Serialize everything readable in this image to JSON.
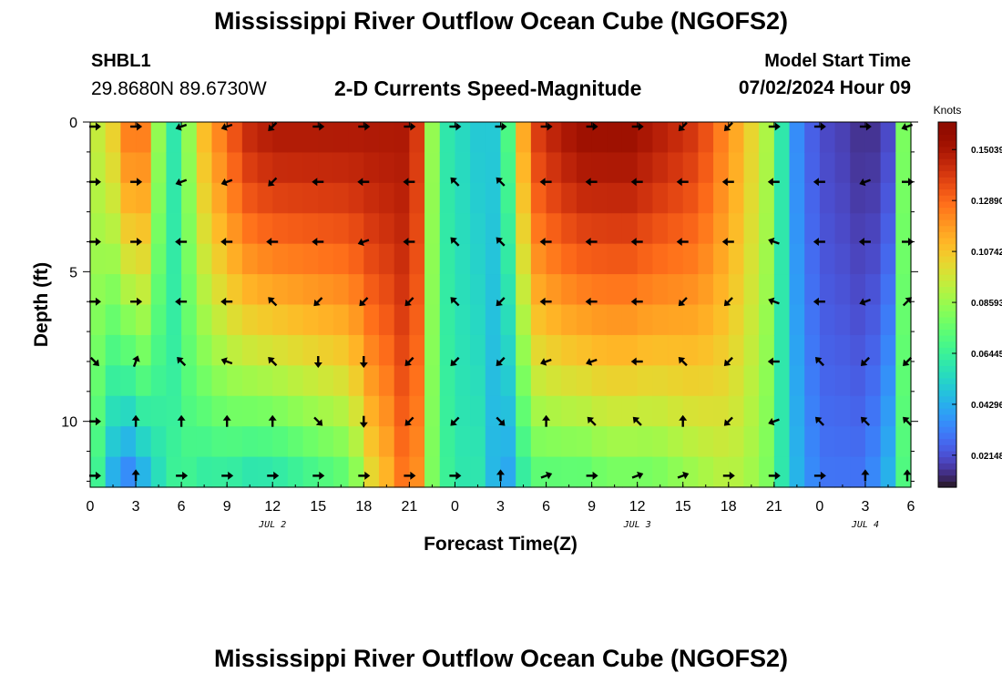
{
  "header": {
    "title": "Mississippi River Outflow Ocean Cube (NGOFS2)",
    "station_id": "SHBL1",
    "station_coords": "29.8680N  89.6730W",
    "product_title": "2-D Currents Speed-Magnitude",
    "model_start_label": "Model Start Time",
    "model_start_value": "07/02/2024 Hour 09"
  },
  "footer": {
    "title": "Mississippi River Outflow Ocean Cube (NGOFS2)"
  },
  "chart_data": {
    "type": "heatmap",
    "xlabel": "Forecast Time(Z)",
    "ylabel": "Depth (ft)",
    "x_ticks": [
      "0",
      "3",
      "6",
      "9",
      "12",
      "15",
      "18",
      "21",
      "0",
      "3",
      "6",
      "9",
      "12",
      "15",
      "18",
      "21",
      "0",
      "3",
      "6"
    ],
    "day_labels": [
      {
        "label": "JUL 2",
        "at_hour": 12
      },
      {
        "label": "JUL 3",
        "at_hour": 36
      },
      {
        "label": "JUL 4",
        "at_hour": 51
      }
    ],
    "x_range_hours": [
      0,
      54
    ],
    "y_ticks": [
      "0",
      "5",
      "10"
    ],
    "y_range": [
      0,
      12.2
    ],
    "y_inverted": true,
    "colorbar": {
      "label": "Knots",
      "ticks": [
        "0.02148",
        "0.04296",
        "0.06445",
        "0.08593",
        "0.10742",
        "0.12890",
        "0.15039"
      ],
      "range": [
        0.008,
        0.162
      ]
    },
    "colormap": "turbo",
    "speed_profile": [
      {
        "hour": 0.0,
        "surface": 0.095,
        "bottom": 0.075
      },
      {
        "hour": 0.7,
        "surface": 0.095,
        "bottom": 0.06
      },
      {
        "hour": 1.5,
        "surface": 0.105,
        "bottom": 0.04
      },
      {
        "hour": 2.5,
        "surface": 0.125,
        "bottom": 0.03
      },
      {
        "hour": 3.5,
        "surface": 0.125,
        "bottom": 0.04
      },
      {
        "hour": 4.5,
        "surface": 0.085,
        "bottom": 0.055
      },
      {
        "hour": 5.5,
        "surface": 0.06,
        "bottom": 0.065
      },
      {
        "hour": 6.5,
        "surface": 0.085,
        "bottom": 0.065
      },
      {
        "hour": 7.5,
        "surface": 0.11,
        "bottom": 0.06
      },
      {
        "hour": 9.0,
        "surface": 0.13,
        "bottom": 0.06
      },
      {
        "hour": 10.5,
        "surface": 0.145,
        "bottom": 0.055
      },
      {
        "hour": 12.0,
        "surface": 0.15,
        "bottom": 0.055
      },
      {
        "hour": 13.5,
        "surface": 0.15,
        "bottom": 0.06
      },
      {
        "hour": 15.0,
        "surface": 0.15,
        "bottom": 0.065
      },
      {
        "hour": 16.5,
        "surface": 0.15,
        "bottom": 0.07
      },
      {
        "hour": 17.5,
        "surface": 0.15,
        "bottom": 0.08
      },
      {
        "hour": 18.5,
        "surface": 0.15,
        "bottom": 0.1
      },
      {
        "hour": 19.5,
        "surface": 0.15,
        "bottom": 0.11
      },
      {
        "hour": 20.5,
        "surface": 0.15,
        "bottom": 0.125
      },
      {
        "hour": 21.5,
        "surface": 0.14,
        "bottom": 0.12
      },
      {
        "hour": 22.5,
        "surface": 0.085,
        "bottom": 0.08
      },
      {
        "hour": 23.5,
        "surface": 0.06,
        "bottom": 0.065
      },
      {
        "hour": 24.5,
        "surface": 0.055,
        "bottom": 0.06
      },
      {
        "hour": 25.5,
        "surface": 0.05,
        "bottom": 0.06
      },
      {
        "hour": 26.5,
        "surface": 0.05,
        "bottom": 0.045
      },
      {
        "hour": 27.5,
        "surface": 0.07,
        "bottom": 0.04
      },
      {
        "hour": 28.5,
        "surface": 0.115,
        "bottom": 0.06
      },
      {
        "hour": 29.5,
        "surface": 0.14,
        "bottom": 0.07
      },
      {
        "hour": 31.0,
        "surface": 0.15,
        "bottom": 0.07
      },
      {
        "hour": 32.5,
        "surface": 0.155,
        "bottom": 0.07
      },
      {
        "hour": 34.0,
        "surface": 0.155,
        "bottom": 0.075
      },
      {
        "hour": 35.5,
        "surface": 0.155,
        "bottom": 0.075
      },
      {
        "hour": 37.0,
        "surface": 0.15,
        "bottom": 0.075
      },
      {
        "hour": 38.5,
        "surface": 0.145,
        "bottom": 0.08
      },
      {
        "hour": 40.0,
        "surface": 0.14,
        "bottom": 0.085
      },
      {
        "hour": 41.5,
        "surface": 0.125,
        "bottom": 0.09
      },
      {
        "hour": 43.0,
        "surface": 0.11,
        "bottom": 0.09
      },
      {
        "hour": 44.5,
        "surface": 0.09,
        "bottom": 0.08
      },
      {
        "hour": 45.5,
        "surface": 0.06,
        "bottom": 0.06
      },
      {
        "hour": 46.5,
        "surface": 0.035,
        "bottom": 0.045
      },
      {
        "hour": 47.5,
        "surface": 0.025,
        "bottom": 0.035
      },
      {
        "hour": 48.5,
        "surface": 0.02,
        "bottom": 0.03
      },
      {
        "hour": 49.5,
        "surface": 0.018,
        "bottom": 0.03
      },
      {
        "hour": 50.5,
        "surface": 0.015,
        "bottom": 0.03
      },
      {
        "hour": 51.5,
        "surface": 0.015,
        "bottom": 0.035
      },
      {
        "hour": 52.5,
        "surface": 0.02,
        "bottom": 0.045
      },
      {
        "hour": 53.5,
        "surface": 0.08,
        "bottom": 0.07
      },
      {
        "hour": 54.0,
        "surface": 0.12,
        "bottom": 0.08
      }
    ],
    "vector_depths_ft": [
      0,
      2,
      4,
      6,
      8,
      10,
      12
    ],
    "vector_hours": [
      0,
      3,
      6,
      9,
      12,
      15,
      18,
      21,
      24,
      27,
      30,
      33,
      36,
      39,
      42,
      45,
      48,
      51,
      54
    ],
    "vector_directions_deg": [
      [
        0,
        0,
        200,
        200,
        225,
        0,
        0,
        0,
        0,
        0,
        0,
        0,
        0,
        225,
        225,
        0,
        0,
        0,
        200
      ],
      [
        0,
        0,
        200,
        200,
        225,
        180,
        180,
        180,
        135,
        135,
        180,
        180,
        180,
        180,
        180,
        180,
        180,
        200,
        0
      ],
      [
        0,
        0,
        180,
        180,
        180,
        180,
        200,
        180,
        135,
        135,
        180,
        180,
        180,
        180,
        180,
        160,
        180,
        180,
        0
      ],
      [
        0,
        0,
        180,
        180,
        135,
        225,
        225,
        225,
        135,
        225,
        180,
        180,
        180,
        225,
        225,
        160,
        180,
        200,
        45
      ],
      [
        315,
        70,
        135,
        160,
        135,
        270,
        270,
        225,
        225,
        225,
        200,
        200,
        180,
        135,
        225,
        180,
        135,
        225,
        225
      ],
      [
        0,
        90,
        90,
        90,
        90,
        315,
        270,
        225,
        225,
        315,
        90,
        135,
        135,
        90,
        225,
        200,
        135,
        135,
        135
      ],
      [
        0,
        90,
        0,
        0,
        0,
        0,
        0,
        0,
        0,
        90,
        20,
        0,
        20,
        20,
        0,
        0,
        0,
        90,
        90
      ]
    ]
  }
}
